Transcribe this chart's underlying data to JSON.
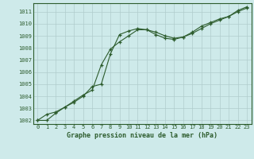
{
  "x": [
    0,
    1,
    2,
    3,
    4,
    5,
    6,
    7,
    8,
    9,
    10,
    11,
    12,
    13,
    14,
    15,
    16,
    17,
    18,
    19,
    20,
    21,
    22,
    23
  ],
  "line1": [
    1002.0,
    1002.5,
    1002.7,
    1003.1,
    1003.5,
    1004.0,
    1004.8,
    1005.0,
    1007.5,
    1009.1,
    1009.4,
    1009.6,
    1009.5,
    1009.1,
    1008.8,
    1008.7,
    1008.9,
    1009.2,
    1009.6,
    1010.0,
    1010.3,
    1010.6,
    1011.0,
    1011.3
  ],
  "line2": [
    1002.0,
    1002.0,
    1002.6,
    1003.1,
    1003.6,
    1004.1,
    1004.5,
    1006.6,
    1007.9,
    1008.5,
    1009.0,
    1009.5,
    1009.5,
    1009.3,
    1009.0,
    1008.8,
    1008.9,
    1009.3,
    1009.8,
    1010.1,
    1010.4,
    1010.6,
    1011.1,
    1011.4
  ],
  "background_color": "#ceeaea",
  "grid_color": "#b0cccc",
  "line_color": "#2d5c2d",
  "xlabel": "Graphe pression niveau de la mer (hPa)",
  "ylim": [
    1001.7,
    1011.7
  ],
  "ytick_min": 1002,
  "ytick_max": 1011,
  "xticks": [
    0,
    1,
    2,
    3,
    4,
    5,
    6,
    7,
    8,
    9,
    10,
    11,
    12,
    13,
    14,
    15,
    16,
    17,
    18,
    19,
    20,
    21,
    22,
    23
  ],
  "tick_fontsize": 5.0,
  "xlabel_fontsize": 6.0,
  "spine_color": "#2d5c2d"
}
